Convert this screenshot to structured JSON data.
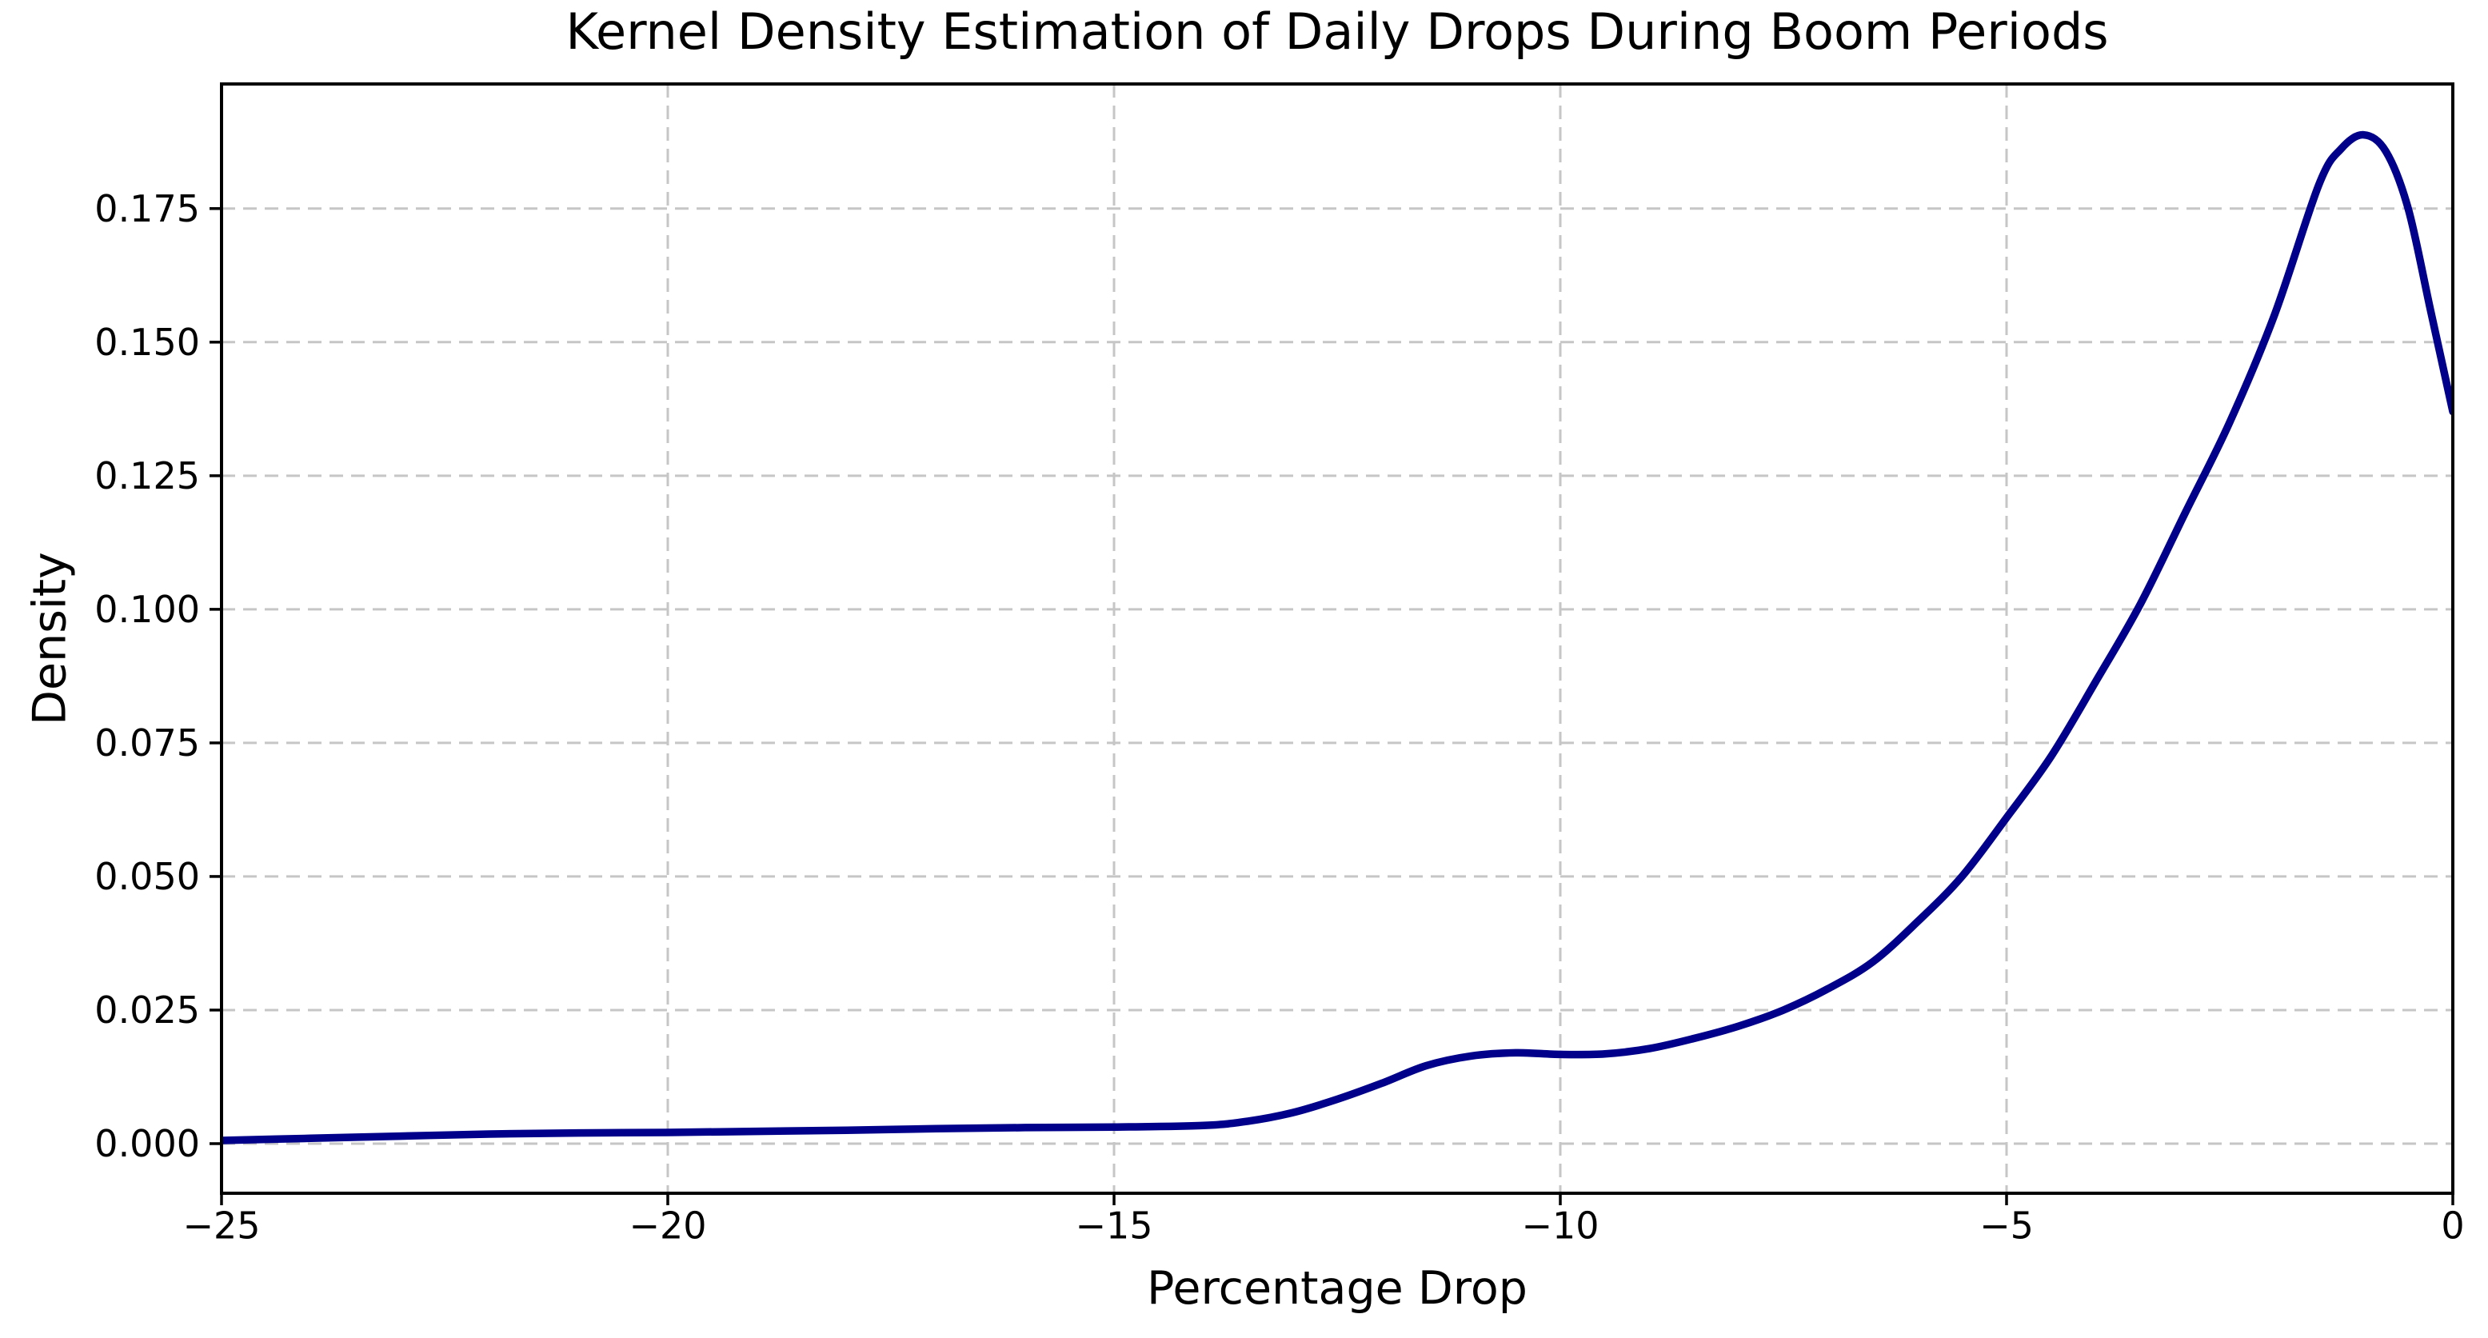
{
  "chart_data": {
    "type": "line",
    "title": "Kernel Density Estimation of Daily Drops During Boom Periods",
    "xlabel": "Percentage Drop",
    "ylabel": "Density",
    "xlim": [
      -25,
      0
    ],
    "ylim": [
      -0.009283,
      0.198317
    ],
    "grid": true,
    "grid_style": "dashed",
    "legend": "none",
    "series": [
      {
        "name": "kde-density-curve",
        "x": [
          -25,
          -24,
          -23,
          -22,
          -21,
          -20,
          -19,
          -18,
          -17,
          -16,
          -15,
          -14,
          -13.5,
          -13,
          -12.5,
          -12,
          -11.5,
          -11,
          -10.5,
          -10,
          -9.5,
          -9,
          -8.5,
          -8,
          -7.5,
          -7,
          -6.5,
          -6,
          -5.5,
          -5,
          -4.5,
          -4,
          -3.5,
          -3,
          -2.5,
          -2,
          -1.5,
          -1.25,
          -1,
          -0.75,
          -0.5,
          -0.25,
          0
        ],
        "y": [
          0.0006,
          0.001,
          0.0014,
          0.0018,
          0.002,
          0.0021,
          0.0023,
          0.0025,
          0.0028,
          0.003,
          0.0031,
          0.0034,
          0.0042,
          0.0058,
          0.0083,
          0.0113,
          0.0146,
          0.0164,
          0.017,
          0.0167,
          0.0168,
          0.0178,
          0.0197,
          0.022,
          0.025,
          0.029,
          0.034,
          0.0415,
          0.05,
          0.061,
          0.0725,
          0.0865,
          0.101,
          0.118,
          0.135,
          0.155,
          0.1795,
          0.1862,
          0.1888,
          0.1857,
          0.175,
          0.156,
          0.137
        ]
      }
    ],
    "xticks": {
      "values": [
        -25,
        -20,
        -15,
        -10,
        -5,
        0
      ],
      "labels": [
        "−25",
        "−20",
        "−15",
        "−10",
        "−5",
        "0"
      ]
    },
    "yticks": {
      "values": [
        0.0,
        0.025,
        0.05,
        0.075,
        0.1,
        0.125,
        0.15,
        0.175
      ],
      "labels": [
        "0.000",
        "0.025",
        "0.050",
        "0.075",
        "0.100",
        "0.125",
        "0.150",
        "0.175"
      ]
    },
    "colors": {
      "line": "#00008B",
      "grid": "#c6c6c6",
      "spine": "#000000",
      "text": "#000000",
      "background": "#ffffff"
    }
  }
}
